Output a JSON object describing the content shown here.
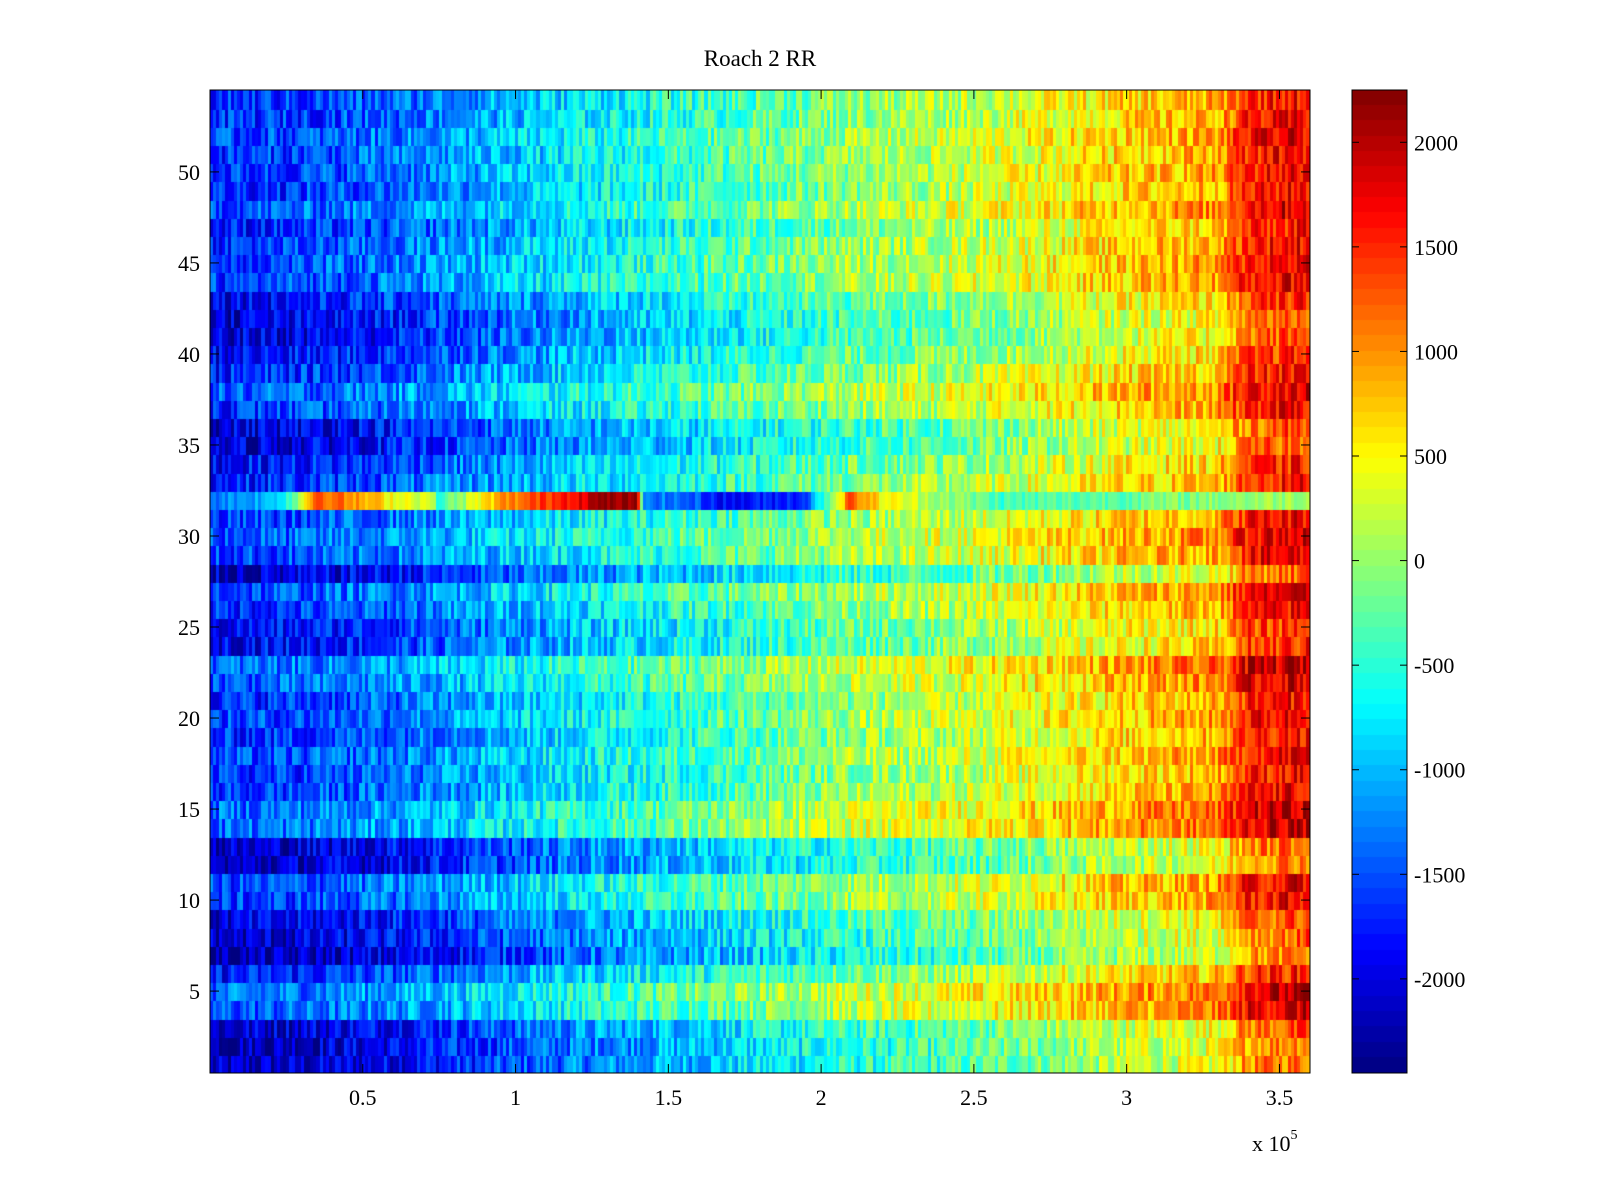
{
  "chart_data": {
    "type": "heatmap",
    "title": "Roach 2 RR",
    "xlabel": "",
    "ylabel": "",
    "colormap": "jet",
    "x_exponent_label": "x 10",
    "x_exponent_power": "5",
    "xlim": [
      0,
      3.6
    ],
    "ylim": [
      0.5,
      54.5
    ],
    "clim": [
      -2450,
      2250
    ],
    "x_ticks": [
      0.5,
      1,
      1.5,
      2,
      2.5,
      3,
      3.5
    ],
    "x_tick_labels": [
      "0.5",
      "1",
      "1.5",
      "2",
      "2.5",
      "3",
      "3.5"
    ],
    "y_ticks": [
      5,
      10,
      15,
      20,
      25,
      30,
      35,
      40,
      45,
      50
    ],
    "y_tick_labels": [
      "5",
      "10",
      "15",
      "20",
      "25",
      "30",
      "35",
      "40",
      "45",
      "50"
    ],
    "colorbar_ticks": [
      2000,
      1500,
      1000,
      500,
      0,
      -500,
      -1000,
      -1500,
      -2000
    ],
    "colorbar_tick_labels": [
      "2000",
      "1500",
      "1000",
      "500",
      "0",
      "-500",
      "-1000",
      "-1500",
      "-2000"
    ],
    "rows": 54,
    "columns": 360,
    "trend_x": [
      0,
      0.3,
      0.6,
      0.9,
      1.2,
      1.5,
      1.8,
      2.1,
      2.4,
      2.7,
      3.0,
      3.3,
      3.4,
      3.6
    ],
    "trend_value": [
      -1500,
      -1400,
      -1200,
      -900,
      -600,
      -350,
      -100,
      150,
      300,
      550,
      850,
      1050,
      1700,
      1900
    ],
    "row_offsets": [
      -700,
      -700,
      -600,
      0,
      100,
      -300,
      -800,
      -650,
      -550,
      -150,
      -100,
      -700,
      -650,
      100,
      100,
      -150,
      -200,
      -100,
      -200,
      -100,
      -200,
      0,
      100,
      -400,
      -400,
      -200,
      -50,
      -650,
      -100,
      0,
      -150,
      0,
      -250,
      -350,
      -600,
      -550,
      -150,
      0,
      -250,
      -400,
      -550,
      -550,
      -400,
      -100,
      -100,
      -150,
      -300,
      0,
      -200,
      -150,
      -150,
      -100,
      -200,
      -200
    ],
    "anomaly_row": 32,
    "anomaly_x": [
      0,
      0.2,
      0.28,
      0.35,
      0.6,
      0.72,
      0.75,
      0.95,
      1.15,
      1.3,
      1.4,
      1.42,
      1.6,
      1.7,
      1.95,
      2.1,
      2.2,
      2.6,
      3.6
    ],
    "anomaly_value": [
      -1300,
      -1000,
      -200,
      1400,
      500,
      300,
      -500,
      900,
      1600,
      2150,
      2150,
      -1200,
      -1500,
      -1900,
      -1600,
      1300,
      500,
      -400,
      100
    ]
  }
}
